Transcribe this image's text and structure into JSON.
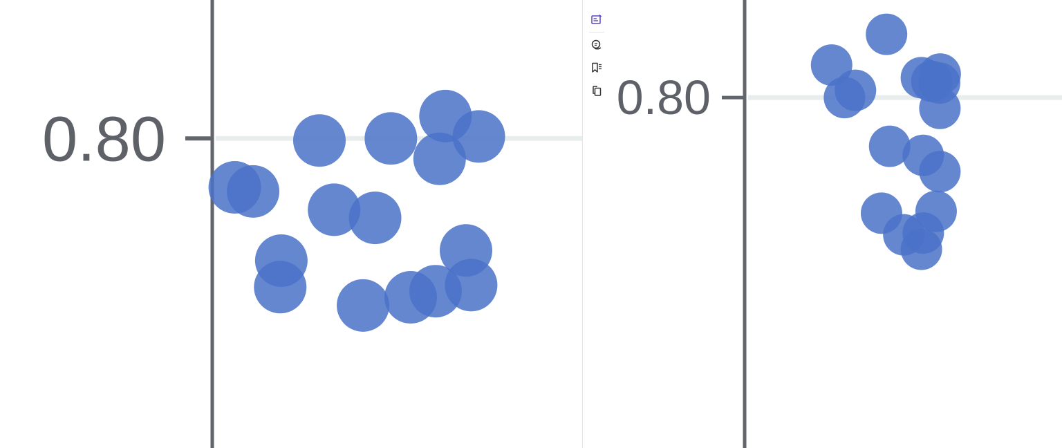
{
  "toolbar": {
    "tools": [
      {
        "icon": "edit-note-icon",
        "color": "#5b43c9"
      },
      {
        "icon": "chat-icon",
        "color": "#333333"
      },
      {
        "icon": "bookmark-list-icon",
        "color": "#333333"
      },
      {
        "icon": "copy-icon",
        "color": "#333333"
      }
    ]
  },
  "colors": {
    "point": "#4a72c8",
    "axis": "#63656c",
    "gridline": "#e8eeee",
    "tick_label": "#5f6168"
  },
  "chart_data": [
    {
      "type": "scatter",
      "y_tick_labels": [
        "0.80"
      ],
      "y_ticks": [
        0.8
      ],
      "ylim": [
        0.648,
        0.868
      ],
      "xlim": [
        0,
        1
      ],
      "grid": true,
      "points": [
        {
          "x": 0.283,
          "y": 0.799
        },
        {
          "x": 0.478,
          "y": 0.8
        },
        {
          "x": 0.627,
          "y": 0.811
        },
        {
          "x": 0.611,
          "y": 0.79
        },
        {
          "x": 0.052,
          "y": 0.776
        },
        {
          "x": 0.102,
          "y": 0.774
        },
        {
          "x": 0.323,
          "y": 0.765
        },
        {
          "x": 0.435,
          "y": 0.761
        },
        {
          "x": 0.179,
          "y": 0.74
        },
        {
          "x": 0.176,
          "y": 0.727
        },
        {
          "x": 0.402,
          "y": 0.718
        },
        {
          "x": 0.532,
          "y": 0.722
        },
        {
          "x": 0.6,
          "y": 0.725
        },
        {
          "x": 0.683,
          "y": 0.745
        },
        {
          "x": 0.697,
          "y": 0.728
        },
        {
          "x": 0.718,
          "y": 0.801
        }
      ]
    },
    {
      "type": "scatter",
      "y_tick_labels": [
        "0.80"
      ],
      "y_ticks": [
        0.8
      ],
      "ylim": [
        0.606,
        0.854
      ],
      "xlim": [
        0,
        1
      ],
      "grid": true,
      "points": [
        {
          "x": 0.441,
          "y": 0.835
        },
        {
          "x": 0.266,
          "y": 0.818
        },
        {
          "x": 0.342,
          "y": 0.804
        },
        {
          "x": 0.307,
          "y": 0.8
        },
        {
          "x": 0.552,
          "y": 0.811
        },
        {
          "x": 0.585,
          "y": 0.809
        },
        {
          "x": 0.61,
          "y": 0.808
        },
        {
          "x": 0.612,
          "y": 0.813
        },
        {
          "x": 0.611,
          "y": 0.794
        },
        {
          "x": 0.451,
          "y": 0.773
        },
        {
          "x": 0.558,
          "y": 0.768
        },
        {
          "x": 0.611,
          "y": 0.759
        },
        {
          "x": 0.425,
          "y": 0.736
        },
        {
          "x": 0.599,
          "y": 0.737
        },
        {
          "x": 0.496,
          "y": 0.724
        },
        {
          "x": 0.558,
          "y": 0.725
        },
        {
          "x": 0.552,
          "y": 0.716
        }
      ]
    }
  ]
}
